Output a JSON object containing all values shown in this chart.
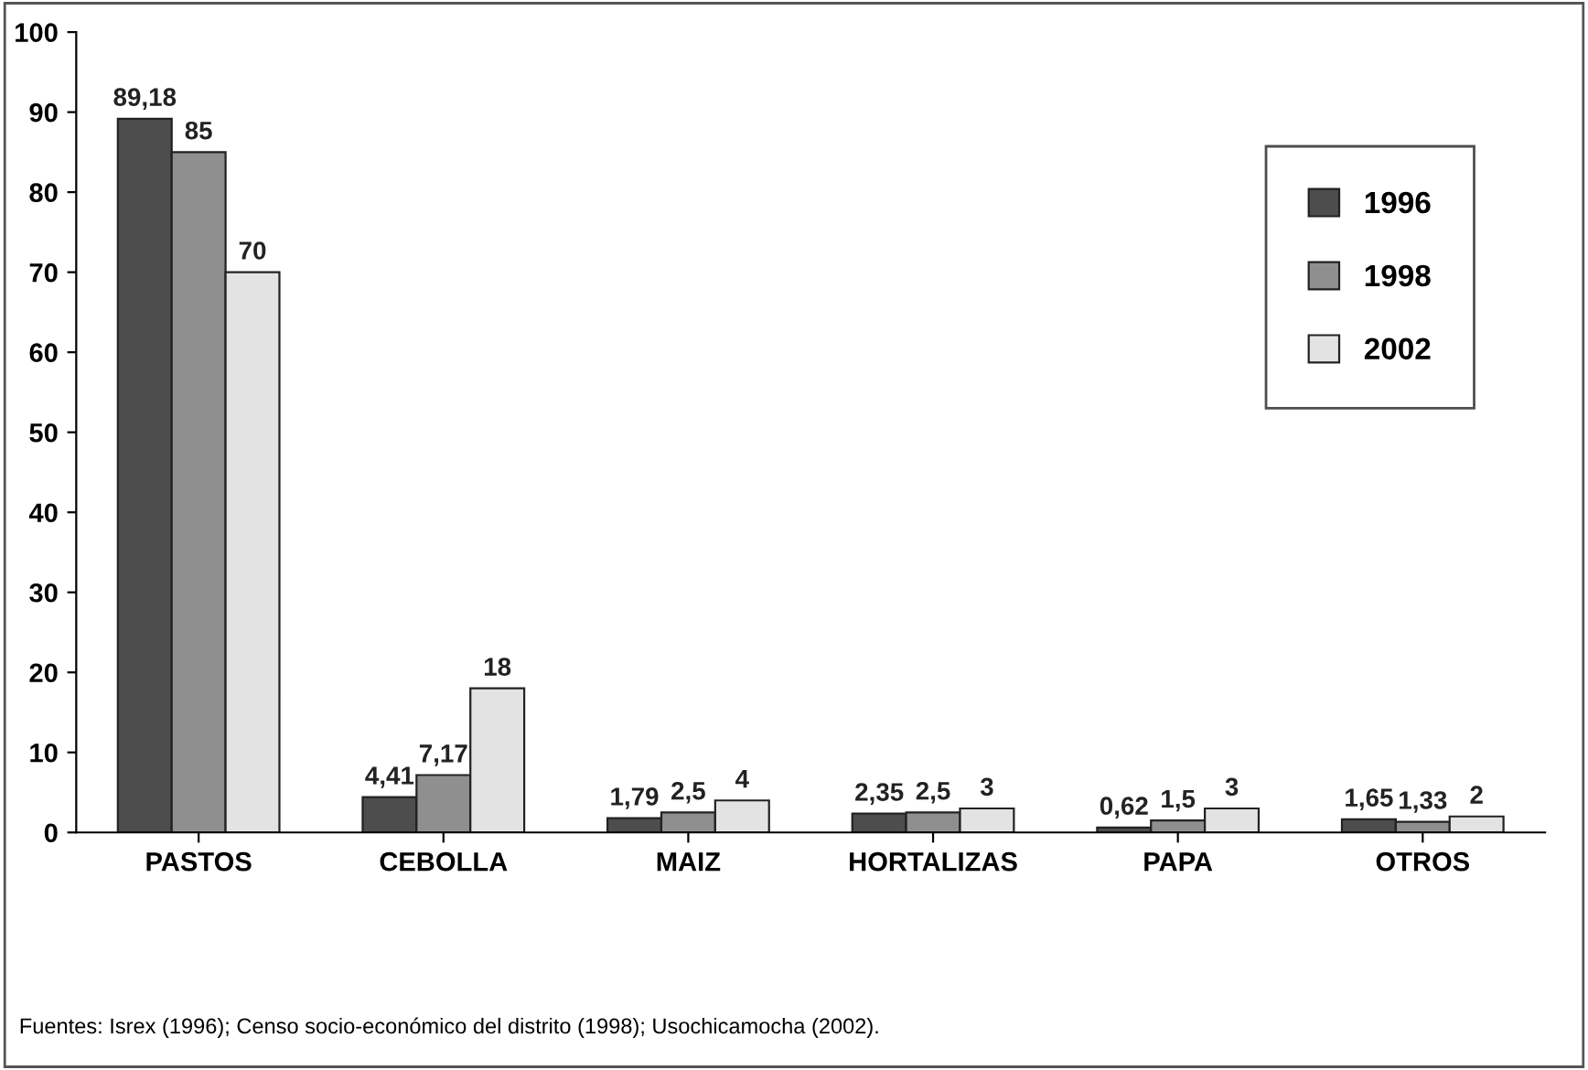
{
  "chart_data": {
    "type": "bar",
    "categories": [
      "PASTOS",
      "CEBOLLA",
      "MAIZ",
      "HORTALIZAS",
      "PAPA",
      "OTROS"
    ],
    "series": [
      {
        "name": "1996",
        "color": "#4d4d4d",
        "values": [
          89.18,
          4.41,
          1.79,
          2.35,
          0.62,
          1.65
        ],
        "value_labels": [
          "89,18",
          "4,41",
          "1,79",
          "2,35",
          "0,62",
          "1,65"
        ]
      },
      {
        "name": "1998",
        "color": "#8f8f8f",
        "values": [
          85,
          7.17,
          2.5,
          2.5,
          1.5,
          1.33
        ],
        "value_labels": [
          "85",
          "7,17",
          "2,5",
          "2,5",
          "1,5",
          "1,33"
        ]
      },
      {
        "name": "2002",
        "color": "#e3e3e3",
        "values": [
          70,
          18,
          4,
          3,
          3,
          2
        ],
        "value_labels": [
          "70",
          "18",
          "4",
          "3",
          "3",
          "2"
        ]
      }
    ],
    "ylim": [
      0,
      100
    ],
    "yticks": [
      0,
      10,
      20,
      30,
      40,
      50,
      60,
      70,
      80,
      90,
      100
    ],
    "grid": false,
    "legend": "top right",
    "annotations": [
      "Fuentes: Isrex (1996); Censo socio-económico del distrito (1998); Usochicamocha (2002)."
    ]
  }
}
